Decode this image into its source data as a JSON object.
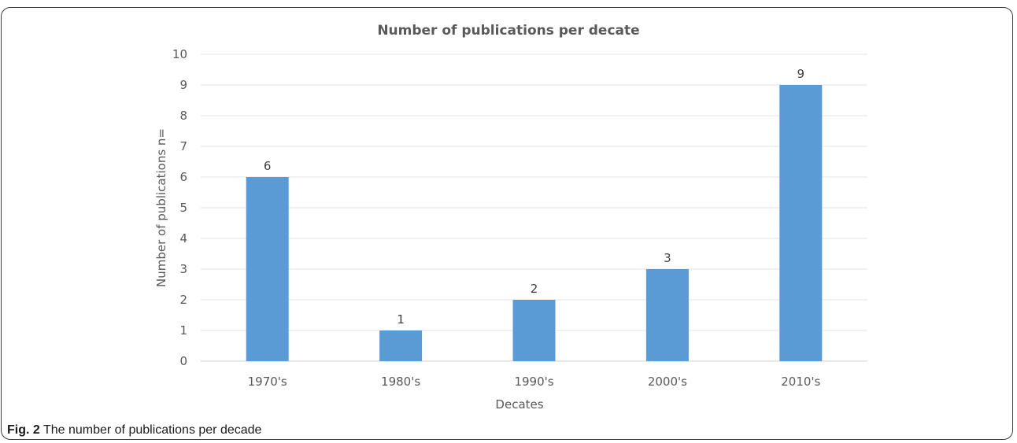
{
  "figure": {
    "caption_label": "Fig. 2",
    "caption_text": "The number of publications per decade"
  },
  "chart_data": {
    "type": "bar",
    "title": "Number of publications per decate",
    "xlabel": "Decates",
    "ylabel": "Number of publications n=",
    "categories": [
      "1970's",
      "1980's",
      "1990's",
      "2000's",
      "2010's"
    ],
    "values": [
      6,
      1,
      2,
      3,
      9
    ],
    "ylim": [
      0,
      10
    ],
    "yticks": [
      0,
      1,
      2,
      3,
      4,
      5,
      6,
      7,
      8,
      9,
      10
    ],
    "grid": true,
    "bar_color": "#5b9bd5",
    "data_labels": true
  }
}
